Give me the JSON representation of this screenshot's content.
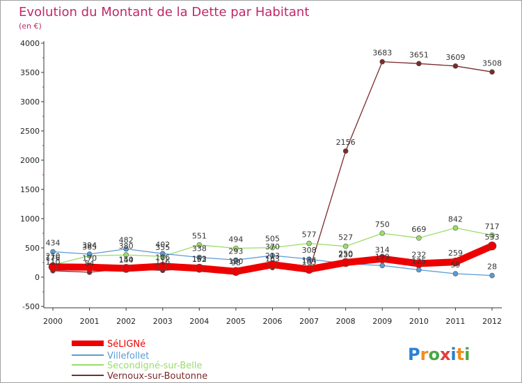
{
  "chart_data": {
    "type": "line",
    "title": "Evolution du Montant de la Dette par Habitant",
    "subtitle": "(en €)",
    "x": [
      "2000",
      "2001",
      "2002",
      "2003",
      "2004",
      "2005",
      "2006",
      "2007",
      "2008",
      "2009",
      "2010",
      "2011",
      "2012"
    ],
    "ylim": [
      -500,
      4000
    ],
    "yticks": [
      "-500",
      "0",
      "500",
      "1000",
      "1500",
      "2000",
      "2500",
      "3000",
      "3500",
      "4000"
    ],
    "grid": false,
    "legend_position": "bottom-left",
    "series": [
      {
        "name": "SéLIGNé",
        "color": "#ee0000",
        "values": [
          176,
          170,
          150,
          186,
          152,
          98,
          213,
          134,
          250,
          314,
          232,
          259,
          533
        ],
        "labels": [
          "176",
          "170",
          "150",
          "186",
          "152",
          "98",
          "213",
          "134",
          "250",
          "314",
          "232",
          "259",
          "533"
        ]
      },
      {
        "name": "Villefollet",
        "color": "#5a9bd5",
        "values": [
          434,
          394,
          482,
          402,
          338,
          293,
          370,
          308,
          230,
          199,
          125,
          59,
          28
        ],
        "labels": [
          "434",
          "394",
          "482",
          "402",
          "338",
          "293",
          "370",
          "308",
          "230",
          "199",
          "125",
          "59",
          "28"
        ]
      },
      {
        "name": "Secondigné-sur-Belle",
        "color": "#99dd66",
        "values": [
          210,
          365,
          380,
          355,
          551,
          494,
          505,
          577,
          527,
          750,
          669,
          842,
          717
        ],
        "labels": [
          "210",
          "365",
          "380",
          "355",
          "551",
          "494",
          "505",
          "577",
          "527",
          "750",
          "669",
          "842",
          "717"
        ]
      },
      {
        "name": "Vernoux-sur-Boutonne",
        "color": "#7a2a2a",
        "values": [
          110,
          84,
          144,
          116,
          163,
          120,
          163,
          105,
          2156,
          3683,
          3651,
          3609,
          3508
        ],
        "labels": [
          "110",
          "84",
          "144",
          "116",
          "163",
          "120",
          "163",
          "105",
          "2156",
          "3683",
          "3651",
          "3609",
          "3508"
        ]
      }
    ]
  },
  "logo": {
    "text": "Proxiti"
  }
}
